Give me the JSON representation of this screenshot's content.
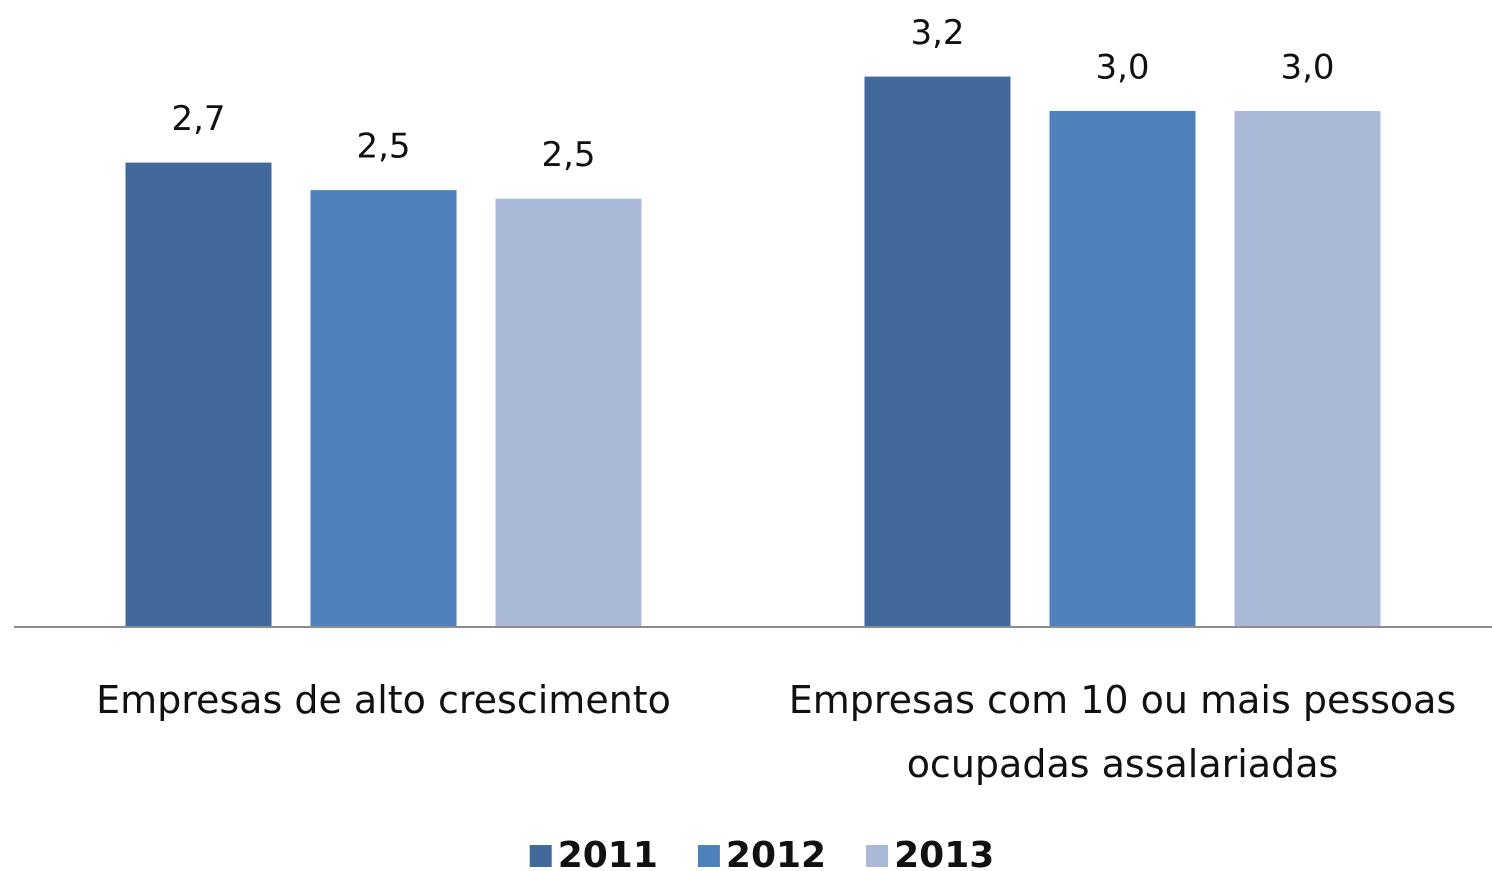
{
  "chart_data": {
    "type": "bar",
    "categories": [
      "Empresas de alto crescimento",
      "Empresas com 10 ou mais pessoas ocupadas assalariadas"
    ],
    "series": [
      {
        "name": "2011",
        "color": "#41699b",
        "values": [
          2.7,
          3.2
        ],
        "value_labels": [
          "2,7",
          "3,2"
        ]
      },
      {
        "name": "2012",
        "color": "#4f81bd",
        "values": [
          2.54,
          3.0
        ],
        "value_labels": [
          "2,5",
          "3,0"
        ]
      },
      {
        "name": "2013",
        "color": "#aab9d7",
        "values": [
          2.49,
          3.0
        ],
        "value_labels": [
          "2,5",
          "3,0"
        ]
      }
    ],
    "ylim": [
      0,
      3.5
    ],
    "legend": "bottom"
  }
}
